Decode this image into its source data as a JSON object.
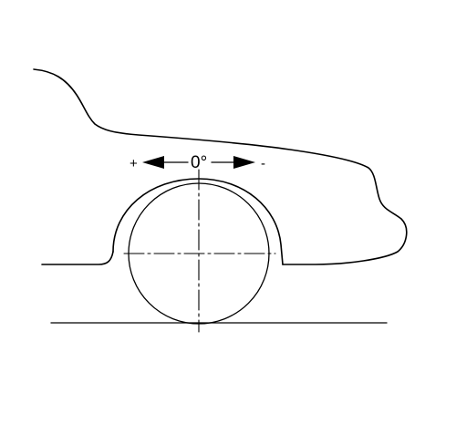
{
  "figure": {
    "plus_sign": "+",
    "minus_sign": "-",
    "angle_value": "0°",
    "line_color": "#000000",
    "background_color": "#ffffff"
  }
}
